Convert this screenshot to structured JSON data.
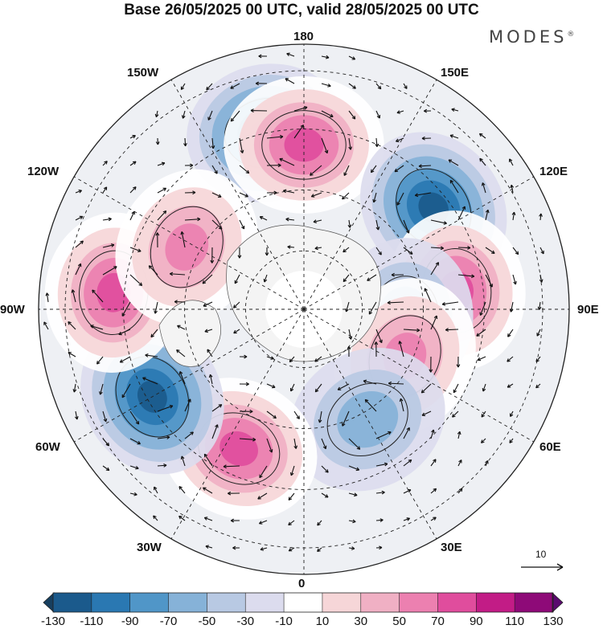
{
  "title": "Base 26/05/2025 00 UTC, valid 28/05/2025 00 UTC",
  "logo": {
    "text": "MODES",
    "mark": "®"
  },
  "map": {
    "projection": "north-polar-stereographic",
    "field": "geopotential height anomaly with wind vectors",
    "longitude_labels": {
      "lon_180": "180",
      "lon_150E": "150E",
      "lon_120E": "120E",
      "lon_90E": "90E",
      "lon_60E": "60E",
      "lon_30E": "30E",
      "lon_0": "0",
      "lon_30W": "30W",
      "lon_60W": "60W",
      "lon_90W": "90W",
      "lon_120W": "120W",
      "lon_150W": "150W"
    },
    "anomaly_centers": [
      {
        "lon": -168,
        "sign": "negative",
        "peak": -110
      },
      {
        "lon": 180,
        "sign": "positive",
        "peak": 90
      },
      {
        "lon": 128,
        "sign": "negative",
        "peak": -110
      },
      {
        "lon": 97,
        "sign": "positive",
        "peak": 90
      },
      {
        "lon": 85,
        "sign": "negative",
        "peak": -50
      },
      {
        "lon": 65,
        "sign": "positive",
        "peak": 70
      },
      {
        "lon": 30,
        "sign": "negative",
        "peak": -50
      },
      {
        "lon": -25,
        "sign": "positive",
        "peak": 90
      },
      {
        "lon": -60,
        "sign": "negative",
        "peak": -110
      },
      {
        "lon": -95,
        "sign": "positive",
        "peak": 90
      },
      {
        "lon": -118,
        "sign": "positive",
        "peak": 70
      }
    ]
  },
  "reference_vector": {
    "label": "10"
  },
  "colorbar": {
    "colors": [
      "#173f5f",
      "#1b5a8c",
      "#2a78b2",
      "#5096c8",
      "#86b2d8",
      "#b8c9e3",
      "#dcdcee",
      "#ffffff",
      "#f6d6d8",
      "#f0b0c4",
      "#ec80b0",
      "#e04d9d",
      "#c21c86",
      "#8e0a78",
      "#5a0a6e"
    ],
    "tick_labels": [
      "-130",
      "-110",
      "-90",
      "-70",
      "-50",
      "-30",
      "-10",
      "10",
      "30",
      "50",
      "70",
      "90",
      "110",
      "130"
    ]
  }
}
